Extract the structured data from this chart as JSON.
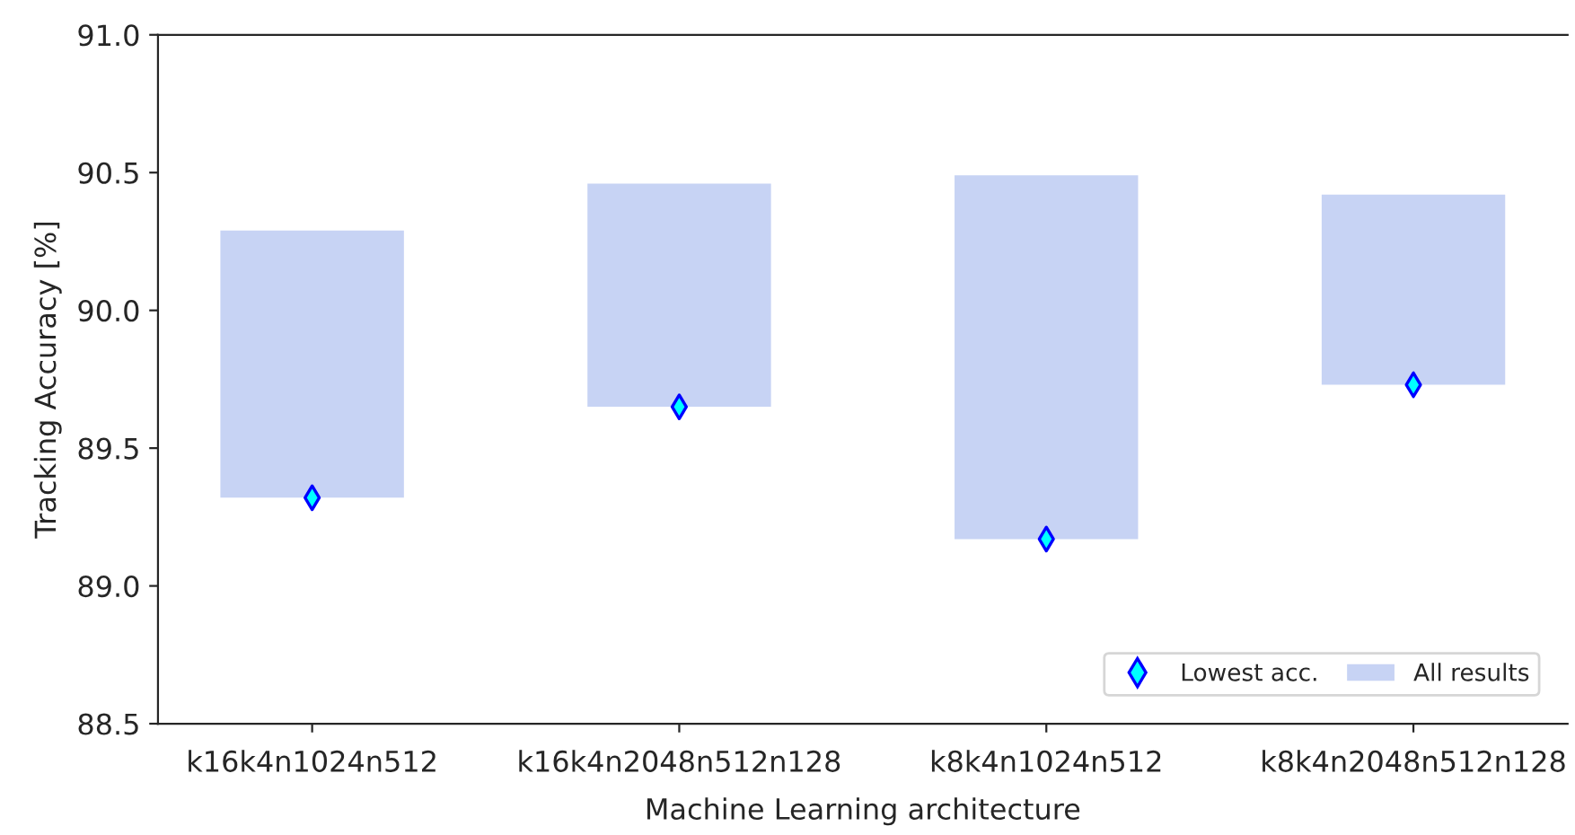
{
  "chart_data": {
    "type": "bar",
    "xlabel": "Machine Learning architecture",
    "ylabel": "Tracking Accuracy [%]",
    "categories": [
      "k16k4n1024n512",
      "k16k4n2048n512n128",
      "k8k4n1024n512",
      "k8k4n2048n512n128"
    ],
    "series": [
      {
        "name": "Lowest acc.",
        "type": "scatter",
        "color": "#00ffff",
        "x": [
          "k16k4n1024n512",
          "k16k4n2048n512n128",
          "k8k4n1024n512",
          "k8k4n2048n512n128"
        ],
        "values": [
          89.32,
          89.65,
          89.17,
          89.73
        ]
      },
      {
        "name": "All results",
        "color": "#c7d3f4",
        "base": [
          89.32,
          89.65,
          89.17,
          89.73
        ],
        "values": [
          0.97,
          0.81,
          1.32,
          0.69
        ]
      }
    ],
    "marker": "diamond",
    "ylim": [
      88.5,
      91.0
    ],
    "yticks": [
      {
        "value": 88.5,
        "label": "88.5"
      },
      {
        "value": 89,
        "label": "89.0"
      },
      {
        "value": 89.5,
        "label": "89.5"
      },
      {
        "value": 90,
        "label": "90.0"
      },
      {
        "value": 90.5,
        "label": "90.5"
      },
      {
        "value": 91,
        "label": "91.0"
      }
    ],
    "grid": false,
    "legend": "bottom right"
  }
}
